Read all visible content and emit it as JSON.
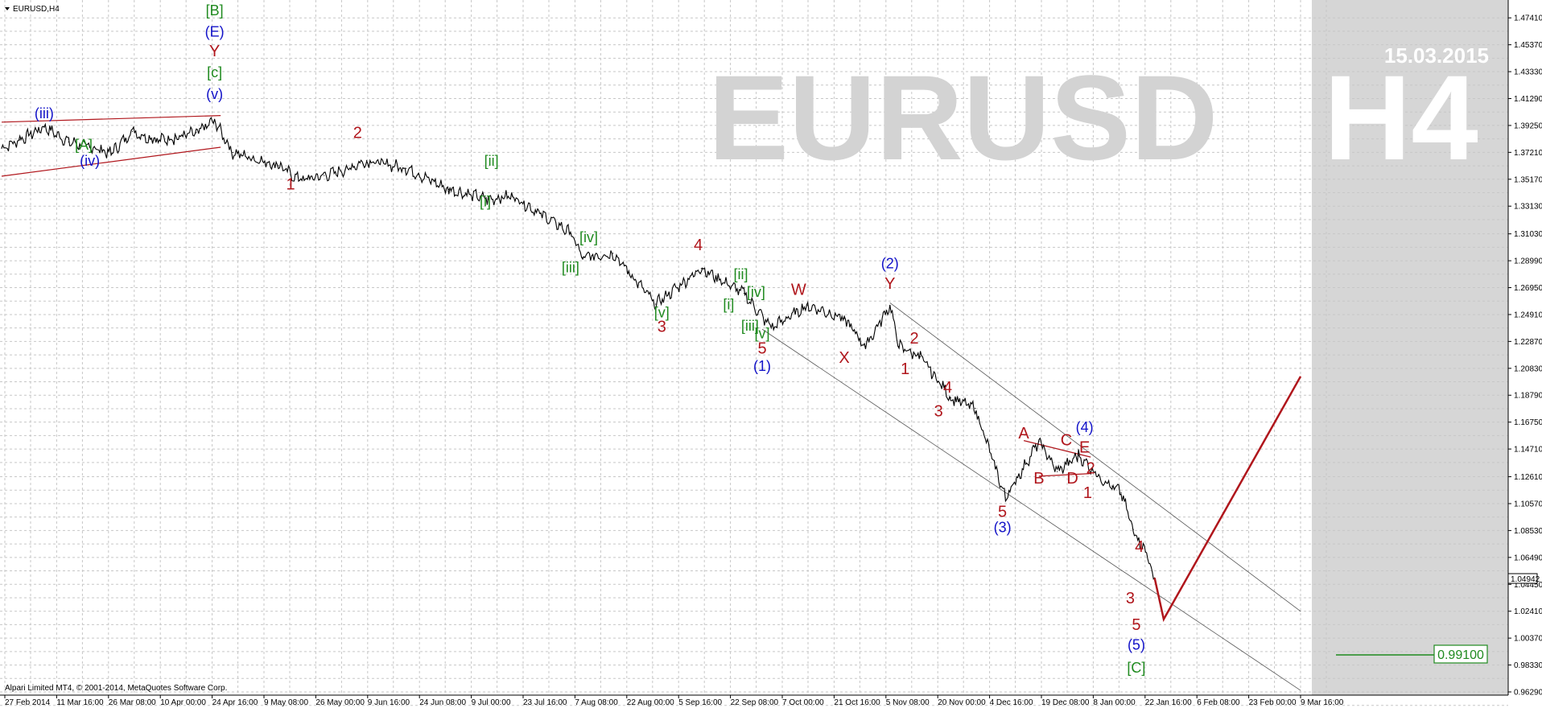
{
  "window_title": "EURUSD,H4",
  "watermark": {
    "symbol_text": "EURUSD",
    "timeframe_text": "H4",
    "date_text": "15.03.2015"
  },
  "copyright": "Alpari Limited MT4, © 2001-2014, MetaQuotes Software Corp.",
  "current_price_label": "1.04942",
  "target_price_label": "0.99100",
  "colors": {
    "price_line": "#000000",
    "wave_red": "#b0161c",
    "wave_blue": "#1212c8",
    "wave_green": "#1f8a1f",
    "grid": "#c7c7c7",
    "future_area": "#d6d6d6",
    "projection": "#b0161c"
  },
  "chart_data": {
    "type": "line",
    "title": "EURUSD,H4",
    "xlabel": "",
    "ylabel": "",
    "ylim": [
      0.9629,
      1.4852
    ],
    "grid": true,
    "y_ticks": [
      "1.47410",
      "1.45370",
      "1.43330",
      "1.41290",
      "1.39250",
      "1.37210",
      "1.35170",
      "1.33130",
      "1.31030",
      "1.28990",
      "1.26950",
      "1.24910",
      "1.22870",
      "1.20830",
      "1.18790",
      "1.16750",
      "1.14710",
      "1.12610",
      "1.10570",
      "1.08530",
      "1.06490",
      "1.04450",
      "1.02410",
      "1.00370",
      "0.98330",
      "0.96290"
    ],
    "x_ticks": [
      "27 Feb 2014",
      "11 Mar 16:00",
      "26 Mar 08:00",
      "10 Apr 00:00",
      "24 Apr 16:00",
      "9 May 08:00",
      "26 May 00:00",
      "9 Jun 16:00",
      "24 Jun 08:00",
      "9 Jul 00:00",
      "23 Jul 16:00",
      "7 Aug 08:00",
      "22 Aug 00:00",
      "5 Sep 16:00",
      "22 Sep 08:00",
      "7 Oct 00:00",
      "21 Oct 16:00",
      "5 Nov 08:00",
      "20 Nov 00:00",
      "4 Dec 16:00",
      "19 Dec 08:00",
      "8 Jan 00:00",
      "22 Jan 16:00",
      "6 Feb 08:00",
      "23 Feb 00:00",
      "9 Mar 16:00"
    ],
    "series": [
      {
        "values": [
          {
            "x": "27 Feb 2014",
            "y": 1.3752
          },
          {
            "x": "5 Mar 2014",
            "y": 1.3815
          },
          {
            "x": "13 Mar 2014",
            "y": 1.3915
          },
          {
            "x": "21 Mar 2014",
            "y": 1.38
          },
          {
            "x": "28 Mar 2014",
            "y": 1.3765
          },
          {
            "x": "4 Apr 2014",
            "y": 1.3715
          },
          {
            "x": "11 Apr 2014",
            "y": 1.388
          },
          {
            "x": "18 Apr 2014",
            "y": 1.3815
          },
          {
            "x": "25 Apr 2014",
            "y": 1.383
          },
          {
            "x": "2 May 2014",
            "y": 1.387
          },
          {
            "x": "8 May 2014",
            "y": 1.396
          },
          {
            "x": "14 May 2014",
            "y": 1.372
          },
          {
            "x": "29 May 2014",
            "y": 1.362
          },
          {
            "x": "5 Jun 2014",
            "y": 1.351
          },
          {
            "x": "13 Jun 2014",
            "y": 1.3545
          },
          {
            "x": "20 Jun 2014",
            "y": 1.359
          },
          {
            "x": "27 Jun 2014",
            "y": 1.366
          },
          {
            "x": "10 Jul 2014",
            "y": 1.36
          },
          {
            "x": "24 Jul 2014",
            "y": 1.344
          },
          {
            "x": "6 Aug 2014",
            "y": 1.3365
          },
          {
            "x": "14 Aug 2014",
            "y": 1.339
          },
          {
            "x": "2 Sep 2014",
            "y": 1.311
          },
          {
            "x": "6 Sep 2014",
            "y": 1.2925
          },
          {
            "x": "16 Sep 2014",
            "y": 1.2955
          },
          {
            "x": "30 Sep 2014",
            "y": 1.257
          },
          {
            "x": "15 Oct 2014",
            "y": 1.284
          },
          {
            "x": "29 Oct 2014",
            "y": 1.265
          },
          {
            "x": "7 Nov 2014",
            "y": 1.239
          },
          {
            "x": "19 Nov 2014",
            "y": 1.256
          },
          {
            "x": "1 Dec 2014",
            "y": 1.246
          },
          {
            "x": "8 Dec 2014",
            "y": 1.225
          },
          {
            "x": "16 Dec 2014",
            "y": 1.256
          },
          {
            "x": "19 Dec 2014",
            "y": 1.225
          },
          {
            "x": "26 Dec 2014",
            "y": 1.217
          },
          {
            "x": "5 Jan 2015",
            "y": 1.186
          },
          {
            "x": "13 Jan 2015",
            "y": 1.178
          },
          {
            "x": "23 Jan 2015",
            "y": 1.11
          },
          {
            "x": "3 Feb 2015",
            "y": 1.153
          },
          {
            "x": "9 Feb 2015",
            "y": 1.13
          },
          {
            "x": "16 Feb 2015",
            "y": 1.142
          },
          {
            "x": "23 Feb 2015",
            "y": 1.126
          },
          {
            "x": "27 Feb 2015",
            "y": 1.119
          },
          {
            "x": "2 Mar 2015",
            "y": 1.114
          },
          {
            "x": "6 Mar 2015",
            "y": 1.086
          },
          {
            "x": "10 Mar 2015",
            "y": 1.069
          },
          {
            "x": "13 Mar 2015",
            "y": 1.0494
          }
        ]
      }
    ],
    "projection": [
      {
        "x": "13 Mar 2015",
        "y": 1.0494
      },
      {
        "x": "16 Mar 2015",
        "y": 1.018
      },
      {
        "x": "30 Apr 2015",
        "y": 1.2022
      }
    ],
    "annotations": [
      {
        "text": "[B]",
        "color": "green",
        "x": "8 May 2014",
        "y": 1.476
      },
      {
        "text": "(E)",
        "color": "blue",
        "x": "8 May 2014",
        "y": 1.46
      },
      {
        "text": "Y",
        "color": "red",
        "x": "8 May 2014",
        "y": 1.445
      },
      {
        "text": "[c]",
        "color": "green",
        "x": "8 May 2014",
        "y": 1.429
      },
      {
        "text": "(v)",
        "color": "blue",
        "x": "8 May 2014",
        "y": 1.4125
      },
      {
        "text": "(iii)",
        "color": "blue",
        "x": "13 Mar 2014",
        "y": 1.398
      },
      {
        "text": "[A]",
        "color": "green",
        "x": "26 Mar 2014",
        "y": 1.374
      },
      {
        "text": "(iv)",
        "color": "blue",
        "x": "28 Mar 2014",
        "y": 1.362
      },
      {
        "text": "1",
        "color": "red",
        "x": "2 Jun 2014",
        "y": 1.344
      },
      {
        "text": "2",
        "color": "red",
        "x": "24 Jun 2014",
        "y": 1.383
      },
      {
        "text": "[ii]",
        "color": "green",
        "x": "7 Aug 2014",
        "y": 1.362
      },
      {
        "text": "[i]",
        "color": "green",
        "x": "5 Aug 2014",
        "y": 1.331
      },
      {
        "text": "[iv]",
        "color": "green",
        "x": "8 Sep 2014",
        "y": 1.304
      },
      {
        "text": "[iii]",
        "color": "green",
        "x": "2 Sep 2014",
        "y": 1.281
      },
      {
        "text": "4",
        "color": "red",
        "x": "14 Oct 2014",
        "y": 1.298
      },
      {
        "text": "[v]",
        "color": "green",
        "x": "2 Oct 2014",
        "y": 1.247
      },
      {
        "text": "3",
        "color": "red",
        "x": "2 Oct 2014",
        "y": 1.236
      },
      {
        "text": "[ii]",
        "color": "green",
        "x": "28 Oct 2014",
        "y": 1.276
      },
      {
        "text": "[iv]",
        "color": "green",
        "x": "2 Nov 2014",
        "y": 1.2625
      },
      {
        "text": "[i]",
        "color": "green",
        "x": "24 Oct 2014",
        "y": 1.253
      },
      {
        "text": "[iii]",
        "color": "green",
        "x": "31 Oct 2014",
        "y": 1.237
      },
      {
        "text": "[v]",
        "color": "green",
        "x": "4 Nov 2014",
        "y": 1.231
      },
      {
        "text": "5",
        "color": "red",
        "x": "4 Nov 2014",
        "y": 1.2195
      },
      {
        "text": "(1)",
        "color": "blue",
        "x": "4 Nov 2014",
        "y": 1.2065
      },
      {
        "text": "W",
        "color": "red",
        "x": "16 Nov 2014",
        "y": 1.264
      },
      {
        "text": "(2)",
        "color": "blue",
        "x": "16 Dec 2014",
        "y": 1.284
      },
      {
        "text": "Y",
        "color": "red",
        "x": "16 Dec 2014",
        "y": 1.2685
      },
      {
        "text": "X",
        "color": "red",
        "x": "1 Dec 2014",
        "y": 1.2125
      },
      {
        "text": "2",
        "color": "red",
        "x": "24 Dec 2014",
        "y": 1.227
      },
      {
        "text": "1",
        "color": "red",
        "x": "21 Dec 2014",
        "y": 1.204
      },
      {
        "text": "4",
        "color": "red",
        "x": "4 Jan 2015",
        "y": 1.19
      },
      {
        "text": "3",
        "color": "red",
        "x": "1 Jan 2015",
        "y": 1.172
      },
      {
        "text": "5",
        "color": "red",
        "x": "22 Jan 2015",
        "y": 1.0955
      },
      {
        "text": "(3)",
        "color": "blue",
        "x": "22 Jan 2015",
        "y": 1.084
      },
      {
        "text": "A",
        "color": "red",
        "x": "29 Jan 2015",
        "y": 1.155
      },
      {
        "text": "B",
        "color": "red",
        "x": "3 Feb 2015",
        "y": 1.121
      },
      {
        "text": "C",
        "color": "red",
        "x": "12 Feb 2015",
        "y": 1.15
      },
      {
        "text": "(4)",
        "color": "blue",
        "x": "18 Feb 2015",
        "y": 1.16
      },
      {
        "text": "E",
        "color": "red",
        "x": "18 Feb 2015",
        "y": 1.1445
      },
      {
        "text": "D",
        "color": "red",
        "x": "14 Feb 2015",
        "y": 1.121
      },
      {
        "text": "2",
        "color": "red",
        "x": "20 Feb 2015",
        "y": 1.1285
      },
      {
        "text": "1",
        "color": "red",
        "x": "19 Feb 2015",
        "y": 1.11
      },
      {
        "text": "4",
        "color": "red",
        "x": "8 Mar 2015",
        "y": 1.069
      },
      {
        "text": "3",
        "color": "red",
        "x": "5 Mar 2015",
        "y": 1.03
      },
      {
        "text": "5",
        "color": "red",
        "x": "7 Mar 2015",
        "y": 1.01
      },
      {
        "text": "(5)",
        "color": "blue",
        "x": "7 Mar 2015",
        "y": 0.995
      },
      {
        "text": "[C]",
        "color": "green",
        "x": "7 Mar 2015",
        "y": 0.9775
      }
    ],
    "trendlines": [
      {
        "color": "red",
        "from": {
          "x": "27 Feb 2014",
          "y": 1.395
        },
        "to": {
          "x": "10 May 2014",
          "y": 1.4
        }
      },
      {
        "color": "red",
        "from": {
          "x": "27 Feb 2014",
          "y": 1.354
        },
        "to": {
          "x": "10 May 2014",
          "y": 1.376
        }
      },
      {
        "color": "red",
        "from": {
          "x": "29 Jan 2015",
          "y": 1.1535
        },
        "to": {
          "x": "20 Feb 2015",
          "y": 1.141
        }
      },
      {
        "color": "red",
        "from": {
          "x": "3 Feb 2015",
          "y": 1.1265
        },
        "to": {
          "x": "20 Feb 2015",
          "y": 1.1285
        }
      },
      {
        "color": "black",
        "from": {
          "x": "16 Dec 2014",
          "y": 1.258
        },
        "to": {
          "x": "30 Apr 2015",
          "y": 1.024
        }
      },
      {
        "color": "black",
        "from": {
          "x": "4 Nov 2014",
          "y": 1.238
        },
        "to": {
          "x": "30 Apr 2015",
          "y": 0.964
        }
      }
    ],
    "target_line": {
      "y": 0.991,
      "color": "green"
    }
  }
}
